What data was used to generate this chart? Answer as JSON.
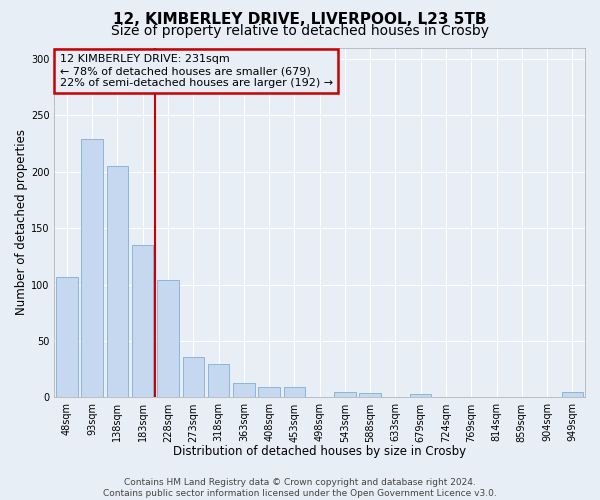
{
  "title_line1": "12, KIMBERLEY DRIVE, LIVERPOOL, L23 5TB",
  "title_line2": "Size of property relative to detached houses in Crosby",
  "xlabel": "Distribution of detached houses by size in Crosby",
  "ylabel": "Number of detached properties",
  "bar_labels": [
    "48sqm",
    "93sqm",
    "138sqm",
    "183sqm",
    "228sqm",
    "273sqm",
    "318sqm",
    "363sqm",
    "408sqm",
    "453sqm",
    "498sqm",
    "543sqm",
    "588sqm",
    "633sqm",
    "679sqm",
    "724sqm",
    "769sqm",
    "814sqm",
    "859sqm",
    "904sqm",
    "949sqm"
  ],
  "bar_values": [
    107,
    229,
    205,
    135,
    104,
    36,
    30,
    13,
    9,
    9,
    0,
    5,
    4,
    0,
    3,
    0,
    0,
    0,
    0,
    0,
    5
  ],
  "bar_color": "#c5d8f0",
  "bar_edge_color": "#7fafd4",
  "reference_line_color": "#cc0000",
  "annotation_title": "12 KIMBERLEY DRIVE: 231sqm",
  "annotation_line1": "← 78% of detached houses are smaller (679)",
  "annotation_line2": "22% of semi-detached houses are larger (192) →",
  "annotation_box_edge_color": "#cc0000",
  "ylim": [
    0,
    310
  ],
  "yticks": [
    0,
    50,
    100,
    150,
    200,
    250,
    300
  ],
  "background_color": "#e8eef5",
  "footer_line1": "Contains HM Land Registry data © Crown copyright and database right 2024.",
  "footer_line2": "Contains public sector information licensed under the Open Government Licence v3.0.",
  "grid_color": "#ffffff",
  "title_fontsize": 11,
  "subtitle_fontsize": 10,
  "axis_label_fontsize": 8.5,
  "tick_fontsize": 7,
  "annotation_fontsize": 8,
  "footer_fontsize": 6.5
}
